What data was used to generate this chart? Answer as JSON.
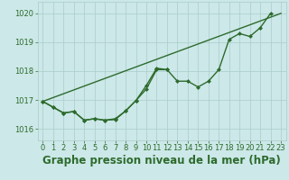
{
  "title": "Graphe pression niveau de la mer (hPa)",
  "bg_color": "#cce8e8",
  "grid_color": "#aacccc",
  "line_color": "#2d6b2d",
  "ylim": [
    1015.6,
    1020.4
  ],
  "xlim": [
    -0.5,
    23.5
  ],
  "yticks": [
    1016,
    1017,
    1018,
    1019,
    1020
  ],
  "xticks": [
    0,
    1,
    2,
    3,
    4,
    5,
    6,
    7,
    8,
    9,
    10,
    11,
    12,
    13,
    14,
    15,
    16,
    17,
    18,
    19,
    20,
    21,
    22,
    23
  ],
  "series_main": [
    1016.95,
    1016.75,
    1016.55,
    1016.6,
    1016.3,
    1016.35,
    1016.3,
    1016.32,
    1016.62,
    1016.98,
    1017.38,
    1018.05,
    1018.05,
    1017.65,
    1017.65,
    1017.45,
    1017.65,
    1018.05,
    1019.1,
    1019.3,
    1019.2,
    1019.5,
    1020.0,
    null
  ],
  "series_alt": [
    1016.95,
    1016.75,
    1016.55,
    1016.6,
    1016.3,
    1016.35,
    1016.3,
    1016.35,
    1016.62,
    1016.98,
    1017.5,
    1018.1,
    1018.05,
    null,
    null,
    null,
    null,
    null,
    null,
    null,
    null,
    null,
    null,
    null
  ],
  "trend_x": [
    0,
    23
  ],
  "trend_y": [
    1016.95,
    1020.0
  ],
  "marker_size": 2.5,
  "linewidth": 1.0,
  "title_fontsize": 8.5,
  "tick_fontsize": 6.0,
  "figsize": [
    3.2,
    2.0
  ],
  "dpi": 100
}
